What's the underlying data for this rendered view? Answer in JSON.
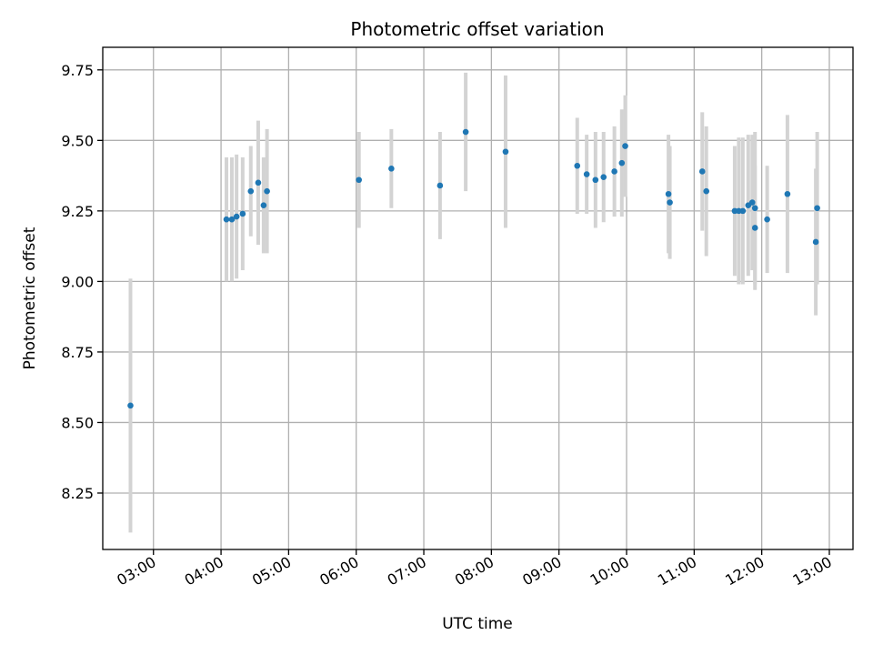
{
  "chart_data": {
    "type": "scatter",
    "title": "Photometric offset variation",
    "xlabel": "UTC time",
    "ylabel": "Photometric offset",
    "x_unit": "hour",
    "xlim": [
      2.25,
      13.35
    ],
    "ylim": [
      8.05,
      9.83
    ],
    "xticks": [
      {
        "value": 3,
        "label": "03:00"
      },
      {
        "value": 4,
        "label": "04:00"
      },
      {
        "value": 5,
        "label": "05:00"
      },
      {
        "value": 6,
        "label": "06:00"
      },
      {
        "value": 7,
        "label": "07:00"
      },
      {
        "value": 8,
        "label": "08:00"
      },
      {
        "value": 9,
        "label": "09:00"
      },
      {
        "value": 10,
        "label": "10:00"
      },
      {
        "value": 11,
        "label": "11:00"
      },
      {
        "value": 12,
        "label": "12:00"
      },
      {
        "value": 13,
        "label": "13:00"
      }
    ],
    "yticks": [
      {
        "value": 8.25,
        "label": "8.25"
      },
      {
        "value": 8.5,
        "label": "8.50"
      },
      {
        "value": 8.75,
        "label": "8.75"
      },
      {
        "value": 9.0,
        "label": "9.00"
      },
      {
        "value": 9.25,
        "label": "9.25"
      },
      {
        "value": 9.5,
        "label": "9.50"
      },
      {
        "value": 9.75,
        "label": "9.75"
      }
    ],
    "grid": true,
    "point_color": "#1f77b4",
    "errorbar_color": "#d3d3d3",
    "points": [
      {
        "x": 2.66,
        "y": 8.56,
        "err": 0.45
      },
      {
        "x": 4.08,
        "y": 9.22,
        "err": 0.22
      },
      {
        "x": 4.16,
        "y": 9.22,
        "err": 0.22
      },
      {
        "x": 4.23,
        "y": 9.23,
        "err": 0.22
      },
      {
        "x": 4.32,
        "y": 9.24,
        "err": 0.2
      },
      {
        "x": 4.44,
        "y": 9.32,
        "err": 0.16
      },
      {
        "x": 4.55,
        "y": 9.35,
        "err": 0.22
      },
      {
        "x": 4.63,
        "y": 9.27,
        "err": 0.17
      },
      {
        "x": 4.68,
        "y": 9.32,
        "err": 0.22
      },
      {
        "x": 6.04,
        "y": 9.36,
        "err": 0.17
      },
      {
        "x": 6.52,
        "y": 9.4,
        "err": 0.14
      },
      {
        "x": 7.24,
        "y": 9.34,
        "err": 0.19
      },
      {
        "x": 7.62,
        "y": 9.53,
        "err": 0.21
      },
      {
        "x": 8.21,
        "y": 9.46,
        "err": 0.27
      },
      {
        "x": 9.27,
        "y": 9.41,
        "err": 0.17
      },
      {
        "x": 9.41,
        "y": 9.38,
        "err": 0.14
      },
      {
        "x": 9.54,
        "y": 9.36,
        "err": 0.17
      },
      {
        "x": 9.66,
        "y": 9.37,
        "err": 0.16
      },
      {
        "x": 9.82,
        "y": 9.39,
        "err": 0.16
      },
      {
        "x": 9.93,
        "y": 9.42,
        "err": 0.19
      },
      {
        "x": 9.98,
        "y": 9.48,
        "err": 0.18
      },
      {
        "x": 10.62,
        "y": 9.31,
        "err": 0.21
      },
      {
        "x": 10.64,
        "y": 9.28,
        "err": 0.2
      },
      {
        "x": 11.12,
        "y": 9.39,
        "err": 0.21
      },
      {
        "x": 11.18,
        "y": 9.32,
        "err": 0.23
      },
      {
        "x": 11.6,
        "y": 9.25,
        "err": 0.23
      },
      {
        "x": 11.66,
        "y": 9.25,
        "err": 0.26
      },
      {
        "x": 11.72,
        "y": 9.25,
        "err": 0.26
      },
      {
        "x": 11.8,
        "y": 9.27,
        "err": 0.25
      },
      {
        "x": 11.86,
        "y": 9.28,
        "err": 0.24
      },
      {
        "x": 11.9,
        "y": 9.26,
        "err": 0.27
      },
      {
        "x": 11.9,
        "y": 9.19,
        "err": 0.22
      },
      {
        "x": 12.08,
        "y": 9.22,
        "err": 0.19
      },
      {
        "x": 12.38,
        "y": 9.31,
        "err": 0.28
      },
      {
        "x": 12.8,
        "y": 9.14,
        "err": 0.26
      },
      {
        "x": 12.82,
        "y": 9.26,
        "err": 0.27
      }
    ]
  }
}
